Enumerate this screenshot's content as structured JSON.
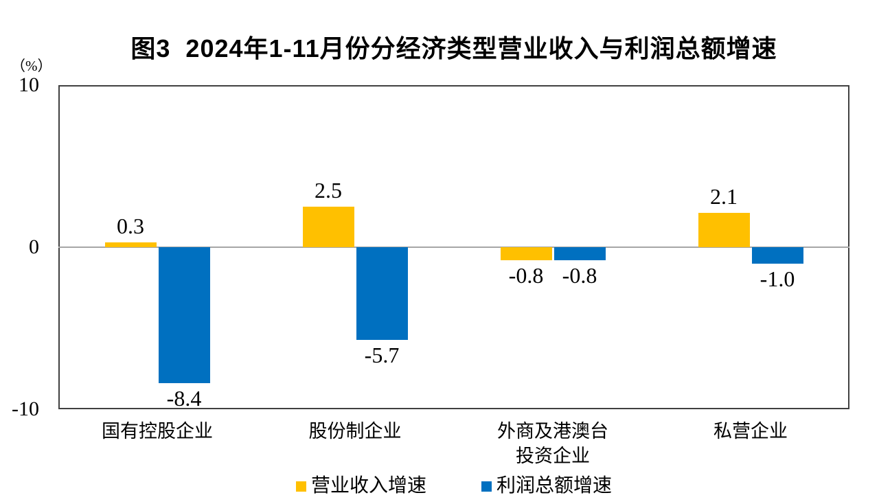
{
  "title": "图3  2024年1-11月份分经济类型营业收入与利润总额增速",
  "chart_data": {
    "type": "bar",
    "categories": [
      "国有控股企业",
      "股份制企业",
      "外商及港澳台\n投资企业",
      "私营企业"
    ],
    "series": [
      {
        "name": "营业收入增速",
        "color": "#FFC000",
        "values": [
          0.3,
          2.5,
          -0.8,
          2.1
        ]
      },
      {
        "name": "利润总额增速",
        "color": "#0070C0",
        "values": [
          -8.4,
          -5.7,
          -0.8,
          -1.0
        ]
      }
    ],
    "title": "图3  2024年1-11月份分经济类型营业收入与利润总额增速",
    "xlabel": "",
    "ylabel": "（%）",
    "ylim": [
      -10,
      10
    ],
    "yticks": [
      10,
      0,
      -10
    ],
    "grid": false,
    "legend_position": "bottom",
    "value_labels": true,
    "colors": {
      "revenue_series": "#FFC000",
      "profit_series": "#0070C0",
      "zero_line": "#A6A6A6",
      "plot_border": "#404040",
      "text": "#000000"
    }
  }
}
